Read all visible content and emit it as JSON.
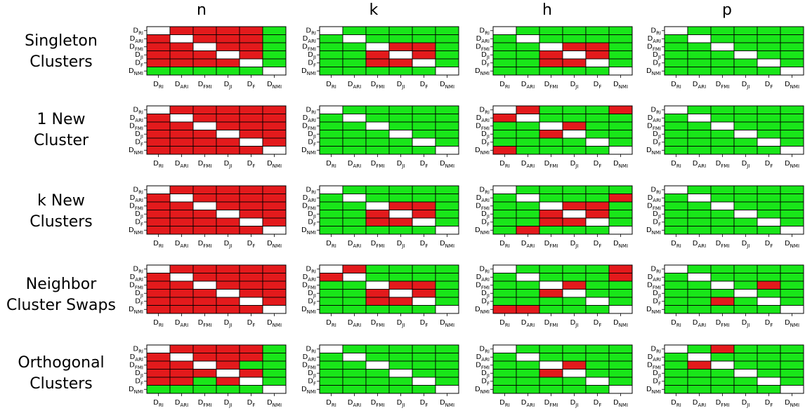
{
  "column_titles": [
    "n",
    "k",
    "h",
    "p"
  ],
  "row_titles": [
    [
      "Singleton",
      "Clusters"
    ],
    [
      "1 New",
      "Cluster"
    ],
    [
      "k New",
      "Clusters"
    ],
    [
      "Neighbor",
      "Cluster Swaps"
    ],
    [
      "Orthogonal",
      "Clusters"
    ]
  ],
  "colors": {
    "red": "#e31a1c",
    "green": "#19e619",
    "diag": "#ffffff",
    "grid": "#000000"
  },
  "chart_data": {
    "type": "heatmap",
    "tick_labels": [
      {
        "base": "D",
        "sub": "RI"
      },
      {
        "base": "D",
        "sub": "ARI"
      },
      {
        "base": "D",
        "sub": "FMI"
      },
      {
        "base": "D",
        "sub": "JI"
      },
      {
        "base": "D",
        "sub": "F"
      },
      {
        "base": "D",
        "sub": "NMI"
      }
    ],
    "legend": "1 = red, 0 = green, diagonal = white",
    "matrices": [
      [
        [
          [
            0,
            1,
            1,
            1,
            1,
            0
          ],
          [
            1,
            0,
            1,
            1,
            1,
            0
          ],
          [
            1,
            1,
            0,
            1,
            1,
            0
          ],
          [
            1,
            1,
            1,
            0,
            1,
            0
          ],
          [
            1,
            1,
            1,
            1,
            0,
            0
          ],
          [
            0,
            0,
            0,
            0,
            0,
            0
          ]
        ],
        [
          [
            0,
            0,
            0,
            0,
            0,
            0
          ],
          [
            0,
            0,
            0,
            0,
            0,
            0
          ],
          [
            0,
            0,
            0,
            1,
            1,
            0
          ],
          [
            0,
            0,
            1,
            0,
            1,
            0
          ],
          [
            0,
            0,
            1,
            1,
            0,
            0
          ],
          [
            0,
            0,
            0,
            0,
            0,
            0
          ]
        ],
        [
          [
            0,
            0,
            0,
            0,
            0,
            0
          ],
          [
            0,
            0,
            0,
            0,
            0,
            0
          ],
          [
            0,
            0,
            0,
            1,
            1,
            0
          ],
          [
            0,
            0,
            1,
            0,
            1,
            0
          ],
          [
            0,
            0,
            1,
            1,
            0,
            0
          ],
          [
            0,
            0,
            0,
            0,
            0,
            0
          ]
        ],
        [
          [
            0,
            0,
            0,
            0,
            0,
            0
          ],
          [
            0,
            0,
            0,
            0,
            0,
            0
          ],
          [
            0,
            0,
            0,
            0,
            0,
            0
          ],
          [
            0,
            0,
            0,
            0,
            0,
            0
          ],
          [
            0,
            0,
            0,
            0,
            0,
            0
          ],
          [
            0,
            0,
            0,
            0,
            0,
            0
          ]
        ]
      ],
      [
        [
          [
            0,
            1,
            1,
            1,
            1,
            1
          ],
          [
            1,
            0,
            1,
            1,
            1,
            1
          ],
          [
            1,
            1,
            0,
            1,
            1,
            1
          ],
          [
            1,
            1,
            1,
            0,
            1,
            1
          ],
          [
            1,
            1,
            1,
            1,
            0,
            1
          ],
          [
            1,
            1,
            1,
            1,
            1,
            0
          ]
        ],
        [
          [
            0,
            0,
            0,
            0,
            0,
            0
          ],
          [
            0,
            0,
            0,
            0,
            0,
            0
          ],
          [
            0,
            0,
            0,
            0,
            0,
            0
          ],
          [
            0,
            0,
            0,
            0,
            0,
            0
          ],
          [
            0,
            0,
            0,
            0,
            0,
            0
          ],
          [
            0,
            0,
            0,
            0,
            0,
            0
          ]
        ],
        [
          [
            0,
            1,
            0,
            0,
            0,
            1
          ],
          [
            1,
            0,
            0,
            0,
            0,
            0
          ],
          [
            0,
            0,
            0,
            1,
            0,
            0
          ],
          [
            0,
            0,
            1,
            0,
            0,
            0
          ],
          [
            0,
            0,
            0,
            0,
            0,
            0
          ],
          [
            1,
            0,
            0,
            0,
            0,
            0
          ]
        ],
        [
          [
            0,
            0,
            0,
            0,
            0,
            0
          ],
          [
            0,
            0,
            0,
            0,
            0,
            0
          ],
          [
            0,
            0,
            0,
            0,
            0,
            0
          ],
          [
            0,
            0,
            0,
            0,
            0,
            0
          ],
          [
            0,
            0,
            0,
            0,
            0,
            0
          ],
          [
            0,
            0,
            0,
            0,
            0,
            0
          ]
        ]
      ],
      [
        [
          [
            0,
            1,
            1,
            1,
            1,
            1
          ],
          [
            1,
            0,
            1,
            1,
            1,
            1
          ],
          [
            1,
            1,
            0,
            1,
            1,
            1
          ],
          [
            1,
            1,
            1,
            0,
            1,
            1
          ],
          [
            1,
            1,
            1,
            1,
            0,
            1
          ],
          [
            1,
            1,
            1,
            1,
            1,
            0
          ]
        ],
        [
          [
            0,
            0,
            0,
            0,
            0,
            0
          ],
          [
            0,
            0,
            0,
            0,
            0,
            0
          ],
          [
            0,
            0,
            0,
            1,
            1,
            0
          ],
          [
            0,
            0,
            1,
            0,
            1,
            0
          ],
          [
            0,
            0,
            1,
            1,
            0,
            0
          ],
          [
            0,
            0,
            0,
            0,
            0,
            0
          ]
        ],
        [
          [
            0,
            0,
            0,
            0,
            0,
            0
          ],
          [
            0,
            0,
            0,
            0,
            0,
            1
          ],
          [
            0,
            0,
            0,
            1,
            1,
            0
          ],
          [
            0,
            0,
            1,
            0,
            1,
            0
          ],
          [
            0,
            0,
            1,
            1,
            0,
            0
          ],
          [
            0,
            1,
            0,
            0,
            0,
            0
          ]
        ],
        [
          [
            0,
            0,
            0,
            0,
            0,
            0
          ],
          [
            0,
            0,
            0,
            0,
            0,
            0
          ],
          [
            0,
            0,
            0,
            0,
            0,
            0
          ],
          [
            0,
            0,
            0,
            0,
            0,
            0
          ],
          [
            0,
            0,
            0,
            0,
            0,
            0
          ],
          [
            0,
            0,
            0,
            0,
            0,
            0
          ]
        ]
      ],
      [
        [
          [
            0,
            1,
            1,
            1,
            1,
            1
          ],
          [
            1,
            0,
            1,
            1,
            1,
            1
          ],
          [
            1,
            1,
            0,
            1,
            1,
            1
          ],
          [
            1,
            1,
            1,
            0,
            1,
            1
          ],
          [
            1,
            1,
            1,
            1,
            0,
            1
          ],
          [
            1,
            1,
            1,
            1,
            1,
            0
          ]
        ],
        [
          [
            0,
            1,
            0,
            0,
            0,
            0
          ],
          [
            1,
            0,
            0,
            0,
            0,
            0
          ],
          [
            0,
            0,
            0,
            1,
            1,
            0
          ],
          [
            0,
            0,
            1,
            0,
            1,
            0
          ],
          [
            0,
            0,
            1,
            1,
            0,
            0
          ],
          [
            0,
            0,
            0,
            0,
            0,
            0
          ]
        ],
        [
          [
            0,
            0,
            0,
            0,
            0,
            1
          ],
          [
            0,
            0,
            0,
            0,
            0,
            1
          ],
          [
            0,
            0,
            0,
            1,
            0,
            0
          ],
          [
            0,
            0,
            1,
            0,
            0,
            0
          ],
          [
            0,
            0,
            0,
            0,
            0,
            0
          ],
          [
            1,
            1,
            0,
            0,
            0,
            0
          ]
        ],
        [
          [
            0,
            0,
            0,
            0,
            0,
            0
          ],
          [
            0,
            0,
            0,
            0,
            0,
            0
          ],
          [
            0,
            0,
            0,
            0,
            1,
            0
          ],
          [
            0,
            0,
            0,
            0,
            0,
            0
          ],
          [
            0,
            0,
            1,
            0,
            0,
            0
          ],
          [
            0,
            0,
            0,
            0,
            0,
            0
          ]
        ]
      ],
      [
        [
          [
            0,
            1,
            1,
            1,
            1,
            0
          ],
          [
            1,
            0,
            1,
            1,
            1,
            0
          ],
          [
            1,
            1,
            0,
            1,
            0,
            0
          ],
          [
            1,
            1,
            1,
            0,
            1,
            0
          ],
          [
            1,
            1,
            0,
            1,
            0,
            0
          ],
          [
            0,
            0,
            0,
            0,
            0,
            0
          ]
        ],
        [
          [
            0,
            0,
            0,
            0,
            0,
            0
          ],
          [
            0,
            0,
            0,
            0,
            0,
            0
          ],
          [
            0,
            0,
            0,
            0,
            0,
            0
          ],
          [
            0,
            0,
            0,
            0,
            0,
            0
          ],
          [
            0,
            0,
            0,
            0,
            0,
            0
          ],
          [
            0,
            0,
            0,
            0,
            0,
            0
          ]
        ],
        [
          [
            0,
            0,
            0,
            0,
            0,
            0
          ],
          [
            0,
            0,
            0,
            0,
            0,
            0
          ],
          [
            0,
            0,
            0,
            1,
            0,
            0
          ],
          [
            0,
            0,
            1,
            0,
            0,
            0
          ],
          [
            0,
            0,
            0,
            0,
            0,
            0
          ],
          [
            0,
            0,
            0,
            0,
            0,
            0
          ]
        ],
        [
          [
            0,
            0,
            1,
            0,
            0,
            0
          ],
          [
            0,
            0,
            0,
            0,
            0,
            0
          ],
          [
            0,
            1,
            0,
            0,
            0,
            0
          ],
          [
            0,
            0,
            0,
            0,
            0,
            0
          ],
          [
            0,
            0,
            0,
            0,
            0,
            0
          ],
          [
            0,
            0,
            0,
            0,
            0,
            0
          ]
        ]
      ]
    ]
  }
}
